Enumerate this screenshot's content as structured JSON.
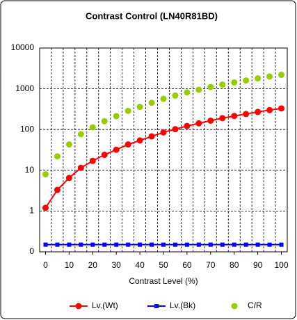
{
  "chart_data": {
    "type": "line",
    "title": "Contrast Control (LN40R81BD)",
    "x_label": "Contrast Level (%)",
    "x": [
      0,
      5,
      10,
      15,
      20,
      25,
      30,
      35,
      40,
      45,
      50,
      55,
      60,
      65,
      70,
      75,
      80,
      85,
      90,
      95,
      100
    ],
    "xlim": [
      -2.5,
      102.5
    ],
    "xticks": [
      0,
      10,
      20,
      30,
      40,
      50,
      60,
      70,
      80,
      90,
      100
    ],
    "ylim": [
      0.1,
      10000
    ],
    "yticks": [
      {
        "value": 0.1,
        "label": "0"
      },
      1,
      10,
      100,
      1000,
      10000
    ],
    "log_y": true,
    "grid": true,
    "legend": "bottom",
    "series": [
      {
        "name": "Lv.(Wt)",
        "color": "#ff0000",
        "marker": "circle",
        "values": [
          1.2,
          3.3,
          6.5,
          11.5,
          17,
          24,
          32,
          43,
          54,
          68,
          85,
          102,
          122,
          142,
          165,
          190,
          215,
          240,
          270,
          300,
          330
        ]
      },
      {
        "name": "Lv.(Bk)",
        "color": "#0000ff",
        "marker": "square",
        "values": [
          0.15,
          0.15,
          0.15,
          0.15,
          0.15,
          0.15,
          0.15,
          0.15,
          0.15,
          0.15,
          0.15,
          0.15,
          0.15,
          0.15,
          0.15,
          0.15,
          0.15,
          0.15,
          0.15,
          0.15,
          0.15
        ]
      },
      {
        "name": "C/R",
        "color": "#99cc00",
        "marker": "circle",
        "values": [
          8,
          22,
          43,
          77,
          113,
          160,
          213,
          287,
          360,
          453,
          567,
          680,
          813,
          947,
          1100,
          1267,
          1433,
          1600,
          1800,
          2000,
          2200
        ]
      }
    ]
  }
}
